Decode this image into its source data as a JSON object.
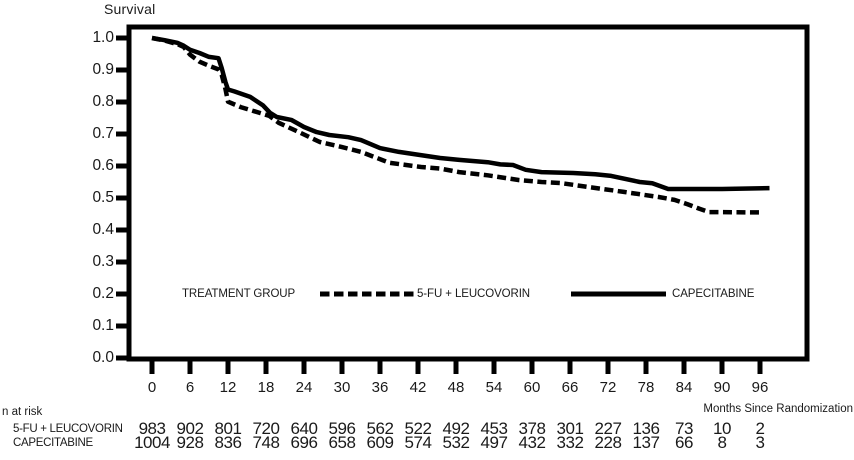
{
  "chart_data": {
    "type": "line",
    "title": "Survival",
    "xlabel": "Months Since Randomization",
    "ylabel": "Survival",
    "xlim": [
      0,
      96
    ],
    "ylim": [
      0.0,
      1.0
    ],
    "grid": false,
    "x_ticks": [
      0,
      6,
      12,
      18,
      24,
      30,
      36,
      42,
      48,
      54,
      60,
      66,
      72,
      78,
      84,
      90,
      96
    ],
    "y_ticks": [
      "1.0",
      "0.9",
      "0.8",
      "0.7",
      "0.6",
      "0.5",
      "0.4",
      "0.3",
      "0.2",
      "0.1",
      "0.0"
    ],
    "legend": {
      "heading": "TREATMENT GROUP",
      "position": "inside-lower-middle"
    },
    "line_color": "#000000",
    "series": [
      {
        "name": "5-FU + LEUCOVORIN",
        "line": "dashed",
        "points": [
          [
            0,
            1.0
          ],
          [
            2,
            0.992
          ],
          [
            4,
            0.981
          ],
          [
            5,
            0.972
          ],
          [
            6,
            0.948
          ],
          [
            7.5,
            0.926
          ],
          [
            9,
            0.913
          ],
          [
            10.5,
            0.902
          ],
          [
            11,
            0.885
          ],
          [
            11.6,
            0.84
          ],
          [
            12,
            0.801
          ],
          [
            14,
            0.784
          ],
          [
            17,
            0.766
          ],
          [
            18.5,
            0.757
          ],
          [
            20,
            0.735
          ],
          [
            23.5,
            0.703
          ],
          [
            26.5,
            0.675
          ],
          [
            30,
            0.659
          ],
          [
            33,
            0.644
          ],
          [
            37.5,
            0.61
          ],
          [
            42.5,
            0.597
          ],
          [
            45.5,
            0.592
          ],
          [
            48.5,
            0.581
          ],
          [
            53,
            0.571
          ],
          [
            58,
            0.556
          ],
          [
            61.5,
            0.55
          ],
          [
            64.5,
            0.547
          ],
          [
            69,
            0.534
          ],
          [
            74.5,
            0.519
          ],
          [
            80,
            0.503
          ],
          [
            82.5,
            0.494
          ],
          [
            84.5,
            0.481
          ],
          [
            86.5,
            0.466
          ],
          [
            88,
            0.456
          ],
          [
            96,
            0.455
          ]
        ]
      },
      {
        "name": "CAPECITABINE",
        "line": "solid",
        "points": [
          [
            0,
            1.0
          ],
          [
            2,
            0.993
          ],
          [
            4,
            0.985
          ],
          [
            5,
            0.976
          ],
          [
            6,
            0.963
          ],
          [
            7.5,
            0.953
          ],
          [
            9,
            0.941
          ],
          [
            10.5,
            0.937
          ],
          [
            11,
            0.906
          ],
          [
            11.6,
            0.862
          ],
          [
            12,
            0.839
          ],
          [
            13,
            0.833
          ],
          [
            15.5,
            0.816
          ],
          [
            17.5,
            0.79
          ],
          [
            18.6,
            0.767
          ],
          [
            19.7,
            0.753
          ],
          [
            22,
            0.744
          ],
          [
            24,
            0.722
          ],
          [
            26,
            0.706
          ],
          [
            28,
            0.697
          ],
          [
            31,
            0.69
          ],
          [
            33,
            0.681
          ],
          [
            36,
            0.656
          ],
          [
            39,
            0.644
          ],
          [
            43.5,
            0.631
          ],
          [
            45.5,
            0.625
          ],
          [
            48.5,
            0.619
          ],
          [
            53,
            0.612
          ],
          [
            55,
            0.605
          ],
          [
            57,
            0.603
          ],
          [
            59,
            0.588
          ],
          [
            61.5,
            0.581
          ],
          [
            66.5,
            0.578
          ],
          [
            70,
            0.574
          ],
          [
            72.5,
            0.569
          ],
          [
            77,
            0.55
          ],
          [
            79,
            0.546
          ],
          [
            81.5,
            0.528
          ],
          [
            90,
            0.528
          ],
          [
            97.5,
            0.531
          ]
        ]
      }
    ]
  },
  "risk_table": {
    "heading": "n at risk",
    "rows": [
      {
        "label": "5-FU + LEUCOVORIN",
        "counts": [
          983,
          902,
          801,
          720,
          640,
          596,
          562,
          522,
          492,
          453,
          378,
          301,
          227,
          136,
          73,
          10,
          2
        ]
      },
      {
        "label": "CAPECITABINE",
        "counts": [
          1004,
          928,
          836,
          748,
          696,
          658,
          609,
          574,
          532,
          497,
          432,
          332,
          228,
          137,
          66,
          8,
          3
        ]
      }
    ]
  }
}
